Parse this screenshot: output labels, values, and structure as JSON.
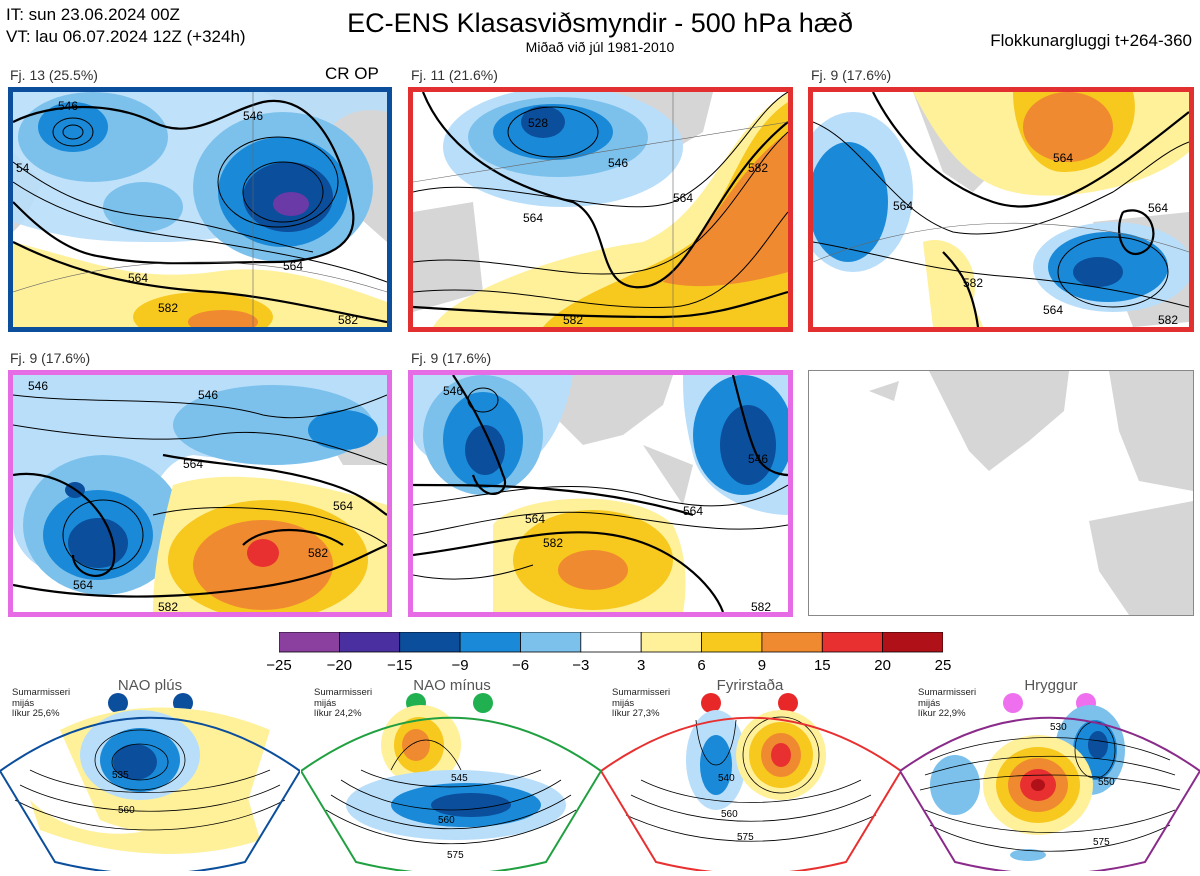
{
  "header": {
    "it_line": "IT: sun 23.06.2024 00Z",
    "vt_line": "VT: lau 06.07.2024 12Z  (+324h)",
    "title": "EC-ENS Klasasviðsmyndir - 500 hPa hæð",
    "subtitle": "Miðað við júl 1981-2010",
    "window": "Flokkunargluggi t+264-360"
  },
  "panels": [
    {
      "label": "Fj. 13 (25.5%)",
      "extra": "CR OP",
      "border": "#0b4e9c"
    },
    {
      "label": "Fj. 11 (21.6%)",
      "extra": "",
      "border": "#e23030"
    },
    {
      "label": "Fj. 9 (17.6%)",
      "extra": "",
      "border": "#e23030"
    },
    {
      "label": "Fj. 9 (17.6%)",
      "extra": "",
      "border": "#e66ce6"
    },
    {
      "label": "Fj. 9 (17.6%)",
      "extra": "",
      "border": "#e66ce6"
    }
  ],
  "contour_labels": {
    "p1": [
      "546",
      "564",
      "564",
      "546",
      "582",
      "54",
      "582"
    ],
    "p2": [
      "564",
      "528",
      "546",
      "564",
      "582",
      "582"
    ],
    "p3": [
      "564",
      "564",
      "564",
      "582",
      "564",
      "582"
    ],
    "p4": [
      "546",
      "546",
      "564",
      "564",
      "582",
      "582",
      "564"
    ],
    "p5": [
      "546",
      "546",
      "564",
      "582",
      "582",
      "564"
    ]
  },
  "colorbar": {
    "ticks": [
      "−25",
      "−20",
      "−15",
      "−9",
      "−6",
      "−3",
      "3",
      "6",
      "9",
      "15",
      "20",
      "25"
    ],
    "colors": [
      "#8b3f9e",
      "#4a2fa0",
      "#0b4e9c",
      "#1a8ad8",
      "#7cc1ec",
      "#ffffff",
      "#fff09a",
      "#f7c81e",
      "#f08a30",
      "#e83030",
      "#b01018"
    ]
  },
  "climatology": [
    {
      "title": "NAO plús",
      "caption": [
        "Sumarmisseri",
        "mijás",
        "líkur 25,6%"
      ],
      "dot_color": "#0b4e9c",
      "frame_color": "#0b4e9c",
      "labels": [
        "535",
        "560"
      ]
    },
    {
      "title": "NAO mínus",
      "caption": [
        "Sumarmisseri",
        "mijás",
        "líkur 24,2%"
      ],
      "dot_color": "#20b050",
      "frame_color": "#20a040",
      "labels": [
        "545",
        "560",
        "575"
      ]
    },
    {
      "title": "Fyrirstaða",
      "caption": [
        "Sumarmisseri",
        "mijás",
        "líkur 27,3%"
      ],
      "dot_color": "#e82828",
      "frame_color": "#e83030",
      "labels": [
        "540",
        "560",
        "575"
      ]
    },
    {
      "title": "Hryggur",
      "caption": [
        "Sumarmisseri",
        "mijás",
        "líkur 22,9%"
      ],
      "dot_color": "#ee70ee",
      "frame_color": "#8a2a8a",
      "labels": [
        "530",
        "550",
        "575"
      ]
    }
  ]
}
